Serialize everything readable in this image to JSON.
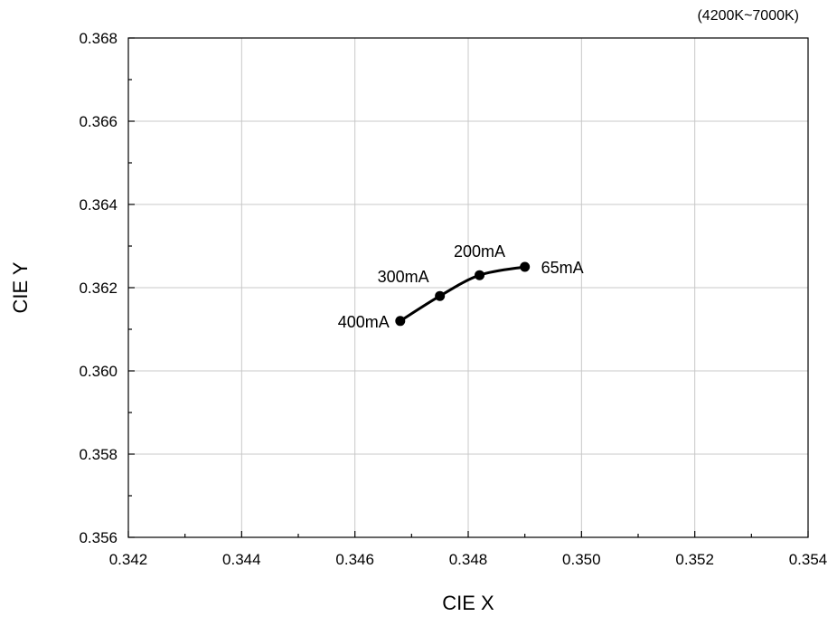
{
  "chart_data": {
    "type": "line",
    "title": "",
    "note": "(4200K~7000K)",
    "xlabel": "CIE X",
    "ylabel": "CIE Y",
    "xlim": [
      0.342,
      0.354
    ],
    "ylim": [
      0.356,
      0.368
    ],
    "x_ticks": [
      "0.342",
      "0.344",
      "0.346",
      "0.348",
      "0.350",
      "0.352",
      "0.354"
    ],
    "y_ticks": [
      "0.356",
      "0.358",
      "0.360",
      "0.362",
      "0.364",
      "0.366",
      "0.368"
    ],
    "grid": true,
    "series": [
      {
        "points": [
          {
            "x": 0.3468,
            "y": 0.3612,
            "label": "400mA"
          },
          {
            "x": 0.3475,
            "y": 0.3618,
            "label": "300mA"
          },
          {
            "x": 0.3482,
            "y": 0.3623,
            "label": "200mA"
          },
          {
            "x": 0.349,
            "y": 0.3625,
            "label": "65mA"
          }
        ]
      }
    ],
    "colors": {
      "line": "#000000",
      "marker": "#000000",
      "grid": "#c8c8c8",
      "axis": "#000000"
    }
  }
}
